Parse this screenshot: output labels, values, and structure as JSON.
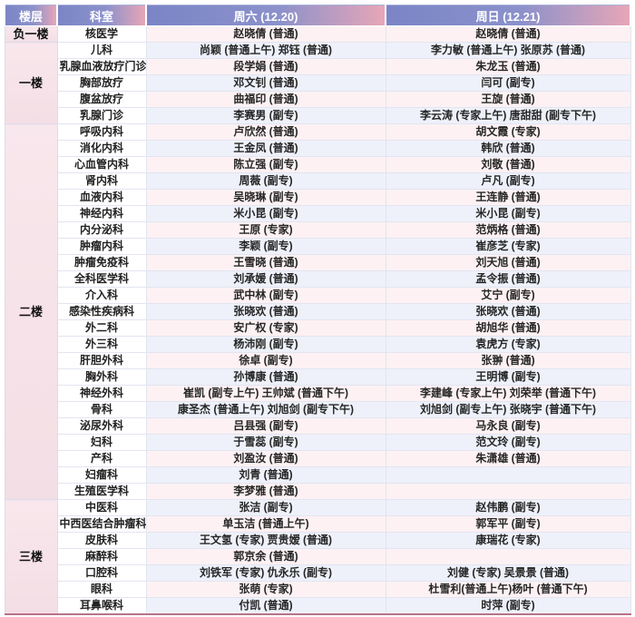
{
  "colors": {
    "header_gradient_left": "#7b85c6",
    "header_gradient_right": "#e7a6b7",
    "header_text": "#ffffff",
    "floor_column_bg": "#f6e2e8",
    "row_pink": "#fdf1f3",
    "row_lavender": "#eef1fa",
    "outer_border": "#a9b3d8",
    "bottom_border": "#b87388"
  },
  "table": {
    "header": {
      "floor": "楼层",
      "dept": "科室",
      "sat": "周六 (12.20)",
      "sun": "周日 (12.21)"
    },
    "sections": [
      {
        "floor": "负一楼",
        "rows": [
          {
            "dept": "核医学",
            "sat": "赵晓倩 (普通)",
            "sun": "赵晓倩 (普通)"
          }
        ]
      },
      {
        "floor": "一楼",
        "rows": [
          {
            "dept": "儿科",
            "sat": "尚颖 (普通上午) 郑钰 (普通)",
            "sun": "李力敏 (普通上午) 张原苏 (普通)"
          },
          {
            "dept": "乳腺血液放疗门诊",
            "sat": "段学娟 (普通)",
            "sun": "朱龙玉 (普通)"
          },
          {
            "dept": "胸部放疗",
            "sat": "邓文钊 (普通)",
            "sun": "闫可 (副专)"
          },
          {
            "dept": "腹盆放疗",
            "sat": "曲福印 (普通)",
            "sun": "王旋 (普通)"
          },
          {
            "dept": "乳腺门诊",
            "sat": "李赛男 (副专)",
            "sun": "李云涛 (专家上午) 唐甜甜 (副专下午)"
          }
        ]
      },
      {
        "floor": "二楼",
        "rows": [
          {
            "dept": "呼吸内科",
            "sat": "卢欣然 (普通)",
            "sun": "胡文霞 (专家)"
          },
          {
            "dept": "消化内科",
            "sat": "王金凤 (普通)",
            "sun": "韩欣 (普通)"
          },
          {
            "dept": "心血管内科",
            "sat": "陈立强 (副专)",
            "sun": "刘敬 (普通)"
          },
          {
            "dept": "肾内科",
            "sat": "周薇 (副专)",
            "sun": "卢凡 (副专)"
          },
          {
            "dept": "血液内科",
            "sat": "吴晓琳 (副专)",
            "sun": "王连静 (普通)"
          },
          {
            "dept": "神经内科",
            "sat": "米小昆 (副专)",
            "sun": "米小昆 (副专)"
          },
          {
            "dept": "内分泌科",
            "sat": "王原 (专家)",
            "sun": "范炳格 (普通)"
          },
          {
            "dept": "肿瘤内科",
            "sat": "李颖 (副专)",
            "sun": "崔彦芝 (专家)"
          },
          {
            "dept": "肿瘤免疫科",
            "sat": "王雪晓 (普通)",
            "sun": "刘天旭 (普通)"
          },
          {
            "dept": "全科医学科",
            "sat": "刘承媛 (普通)",
            "sun": "孟令振 (普通)"
          },
          {
            "dept": "介入科",
            "sat": "武中林 (副专)",
            "sun": "艾宁 (副专)"
          },
          {
            "dept": "感染性疾病科",
            "sat": "张晓欢 (普通)",
            "sun": "张晓欢 (普通)"
          },
          {
            "dept": "外二科",
            "sat": "安广权 (专家)",
            "sun": "胡旭华 (普通)"
          },
          {
            "dept": "外三科",
            "sat": "杨沛刚 (副专)",
            "sun": "袁虎方 (专家)"
          },
          {
            "dept": "肝胆外科",
            "sat": "徐卓 (副专)",
            "sun": "张翀 (普通)"
          },
          {
            "dept": "胸外科",
            "sat": "孙博康 (普通)",
            "sun": "王明博 (副专)"
          },
          {
            "dept": "神经外科",
            "sat": "崔凯 (副专上午) 王帅斌 (普通下午)",
            "sun": "李建峰 (专家上午) 刘荣举 (普通下午)"
          },
          {
            "dept": "骨科",
            "sat": "康圣杰 (普通上午) 刘旭剑 (副专下午)",
            "sun": "刘旭剑 (副专上午) 张晓宇 (普通下午)"
          },
          {
            "dept": "泌尿外科",
            "sat": "吕县强 (副专)",
            "sun": "马永良 (副专)"
          },
          {
            "dept": "妇科",
            "sat": "于雪蕊 (副专)",
            "sun": "范文玲 (副专)"
          },
          {
            "dept": "产科",
            "sat": "刘盈汝 (普通)",
            "sun": "朱潇雄 (普通)"
          },
          {
            "dept": "妇瘤科",
            "sat": "刘青 (普通)",
            "sun": ""
          },
          {
            "dept": "生殖医学科",
            "sat": "李梦雅 (普通)",
            "sun": ""
          }
        ]
      },
      {
        "floor": "三楼",
        "rows": [
          {
            "dept": "中医科",
            "sat": "张洁 (副专)",
            "sun": "赵伟鹏 (副专)"
          },
          {
            "dept": "中西医结合肿瘤科",
            "sat": "单玉洁 (普通上午)",
            "sun": "郭军平 (副专)"
          },
          {
            "dept": "皮肤科",
            "sat": "王文氢 (专家) 贾贵嫒 (普通)",
            "sun": "康瑞花 (专家)"
          },
          {
            "dept": "麻醉科",
            "sat": "郭京余 (普通)",
            "sun": ""
          },
          {
            "dept": "口腔科",
            "sat": "刘铁军 (专家) 仇永乐 (副专)",
            "sun": "刘健 (专家) 吴景景 (普通)"
          },
          {
            "dept": "眼科",
            "sat": "张萌 (专家)",
            "sun": "杜雪利(普通上午)杨叶 (普通下午)"
          },
          {
            "dept": "耳鼻喉科",
            "sat": "付凯 (普通)",
            "sun": "时萍 (副专)"
          }
        ]
      }
    ]
  }
}
